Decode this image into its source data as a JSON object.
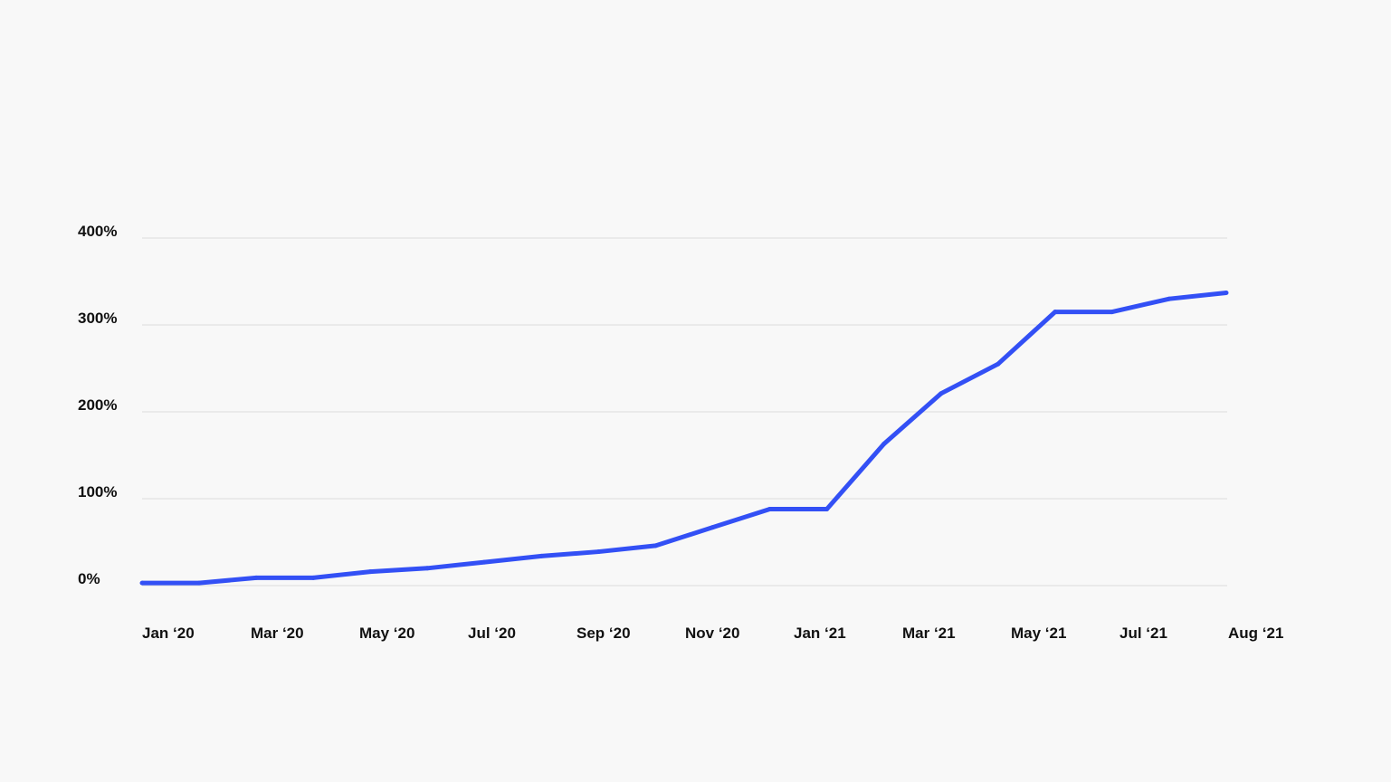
{
  "chart_data": {
    "type": "line",
    "title": "",
    "xlabel": "",
    "ylabel": "",
    "x_tick_labels": [
      "Jan ‘20",
      "Mar ‘20",
      "May ‘20",
      "Jul ‘20",
      "Sep ‘20",
      "Nov ‘20",
      "Jan ‘21",
      "Mar ‘21",
      "May ‘21",
      "Jul ‘21",
      "Aug ‘21"
    ],
    "y_ticks": [
      0,
      100,
      200,
      300,
      400
    ],
    "y_tick_labels": [
      "0%",
      "100%",
      "200%",
      "300%",
      "400%"
    ],
    "ylim": [
      0,
      400
    ],
    "grid": true,
    "legend": "none",
    "series": [
      {
        "color": "#3350f5",
        "x": [
          "2020-01",
          "2020-02",
          "2020-03",
          "2020-04",
          "2020-05",
          "2020-06",
          "2020-07",
          "2020-08",
          "2020-09",
          "2020-10",
          "2020-11",
          "2020-12",
          "2021-01",
          "2021-02",
          "2021-03",
          "2021-04",
          "2021-05",
          "2021-06",
          "2021-07",
          "2021-08"
        ],
        "values": [
          3,
          3,
          9,
          9,
          16,
          20,
          27,
          34,
          39,
          46,
          67,
          88,
          88,
          163,
          221,
          255,
          315,
          315,
          330,
          337
        ]
      }
    ]
  }
}
